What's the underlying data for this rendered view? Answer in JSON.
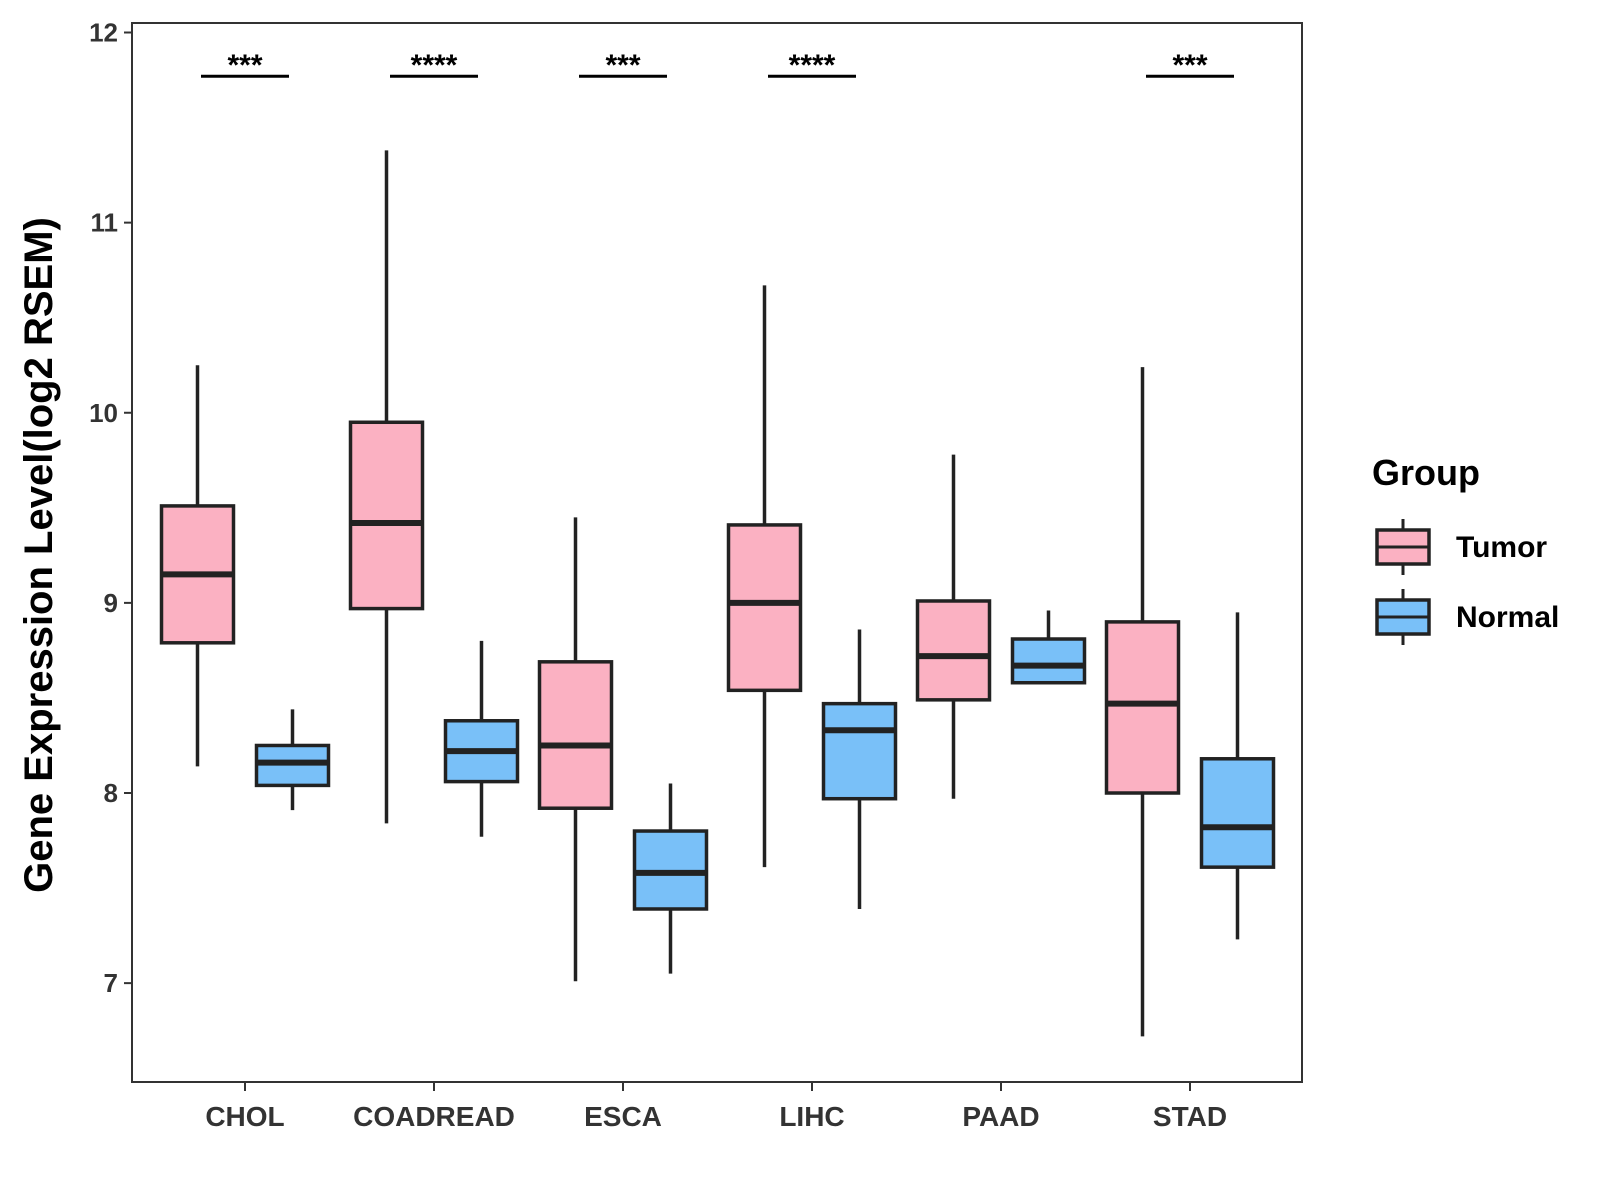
{
  "chart_data": {
    "type": "boxplot",
    "title": "",
    "xlabel": "",
    "ylabel": "Gene Expression Level(log2 RSEM)",
    "ylim": [
      6.48,
      12.05
    ],
    "yticks": [
      7,
      8,
      9,
      10,
      11,
      12
    ],
    "categories": [
      "CHOL",
      "COADREAD",
      "ESCA",
      "LIHC",
      "PAAD",
      "STAD"
    ],
    "legend": {
      "title": "Group",
      "position": "right",
      "items": [
        {
          "name": "Tumor",
          "color": "#FBB1C2"
        },
        {
          "name": "Normal",
          "color": "#79C0F8"
        }
      ]
    },
    "series": [
      {
        "name": "Tumor",
        "color": "#FBB1C2",
        "boxes": [
          {
            "category": "CHOL",
            "min": 8.14,
            "q1": 8.79,
            "median": 9.15,
            "q3": 9.51,
            "max": 10.25
          },
          {
            "category": "COADREAD",
            "min": 7.84,
            "q1": 8.97,
            "median": 9.42,
            "q3": 9.95,
            "max": 11.38
          },
          {
            "category": "ESCA",
            "min": 7.01,
            "q1": 7.92,
            "median": 8.25,
            "q3": 8.69,
            "max": 9.45
          },
          {
            "category": "LIHC",
            "min": 7.61,
            "q1": 8.54,
            "median": 9.0,
            "q3": 9.41,
            "max": 10.67
          },
          {
            "category": "PAAD",
            "min": 7.97,
            "q1": 8.49,
            "median": 8.72,
            "q3": 9.01,
            "max": 9.78
          },
          {
            "category": "STAD",
            "min": 6.72,
            "q1": 8.0,
            "median": 8.47,
            "q3": 8.9,
            "max": 10.24
          }
        ]
      },
      {
        "name": "Normal",
        "color": "#79C0F8",
        "boxes": [
          {
            "category": "CHOL",
            "min": 7.91,
            "q1": 8.04,
            "median": 8.16,
            "q3": 8.25,
            "max": 8.44
          },
          {
            "category": "COADREAD",
            "min": 7.77,
            "q1": 8.06,
            "median": 8.22,
            "q3": 8.38,
            "max": 8.8
          },
          {
            "category": "ESCA",
            "min": 7.05,
            "q1": 7.39,
            "median": 7.58,
            "q3": 7.8,
            "max": 8.05
          },
          {
            "category": "LIHC",
            "min": 7.39,
            "q1": 7.97,
            "median": 8.33,
            "q3": 8.47,
            "max": 8.86
          },
          {
            "category": "PAAD",
            "min": 8.58,
            "q1": 8.58,
            "median": 8.67,
            "q3": 8.81,
            "max": 8.96
          },
          {
            "category": "STAD",
            "min": 7.23,
            "q1": 7.61,
            "median": 7.82,
            "q3": 8.18,
            "max": 8.95
          }
        ]
      }
    ],
    "annotations": [
      {
        "category": "CHOL",
        "label": "***"
      },
      {
        "category": "COADREAD",
        "label": "****"
      },
      {
        "category": "ESCA",
        "label": "***"
      },
      {
        "category": "LIHC",
        "label": "****"
      },
      {
        "category": "STAD",
        "label": "***"
      }
    ],
    "annotation_y": 11.77
  }
}
